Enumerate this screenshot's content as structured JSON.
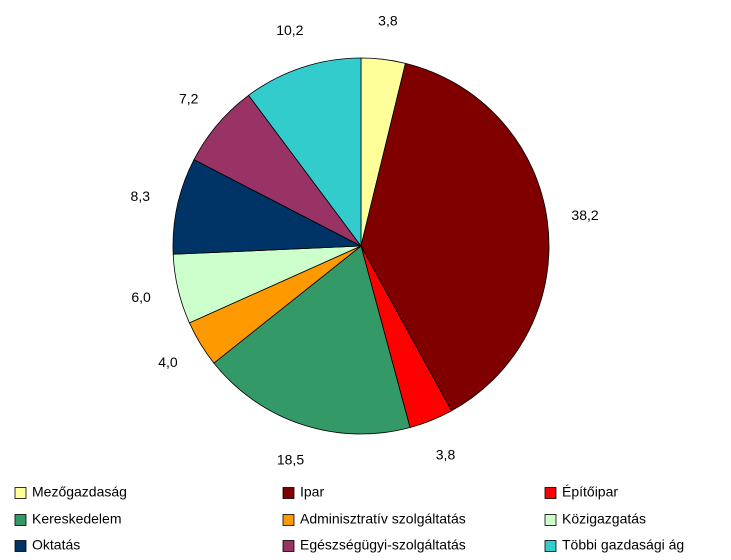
{
  "chart_data": {
    "type": "pie",
    "categories": [
      "Mezőgazdaság",
      "Ipar",
      "Építőipar",
      "Kereskedelem",
      "Adminisztratív szolgáltatás",
      "Közigazgatás",
      "Oktatás",
      "Egészségügyi-szolgáltatás",
      "Többi gazdasági ág"
    ],
    "values": [
      3.8,
      38.2,
      3.8,
      18.5,
      4.0,
      6.0,
      8.3,
      7.2,
      10.2
    ],
    "value_labels": [
      "3,8",
      "38,2",
      "3,8",
      "18,5",
      "4,0",
      "6,0",
      "8,3",
      "7,2",
      "10,2"
    ],
    "colors": [
      "#ffff99",
      "#800000",
      "#ff0000",
      "#339966",
      "#ff9900",
      "#ccffcc",
      "#003366",
      "#993366",
      "#33cccc"
    ],
    "legend": "bottom"
  }
}
